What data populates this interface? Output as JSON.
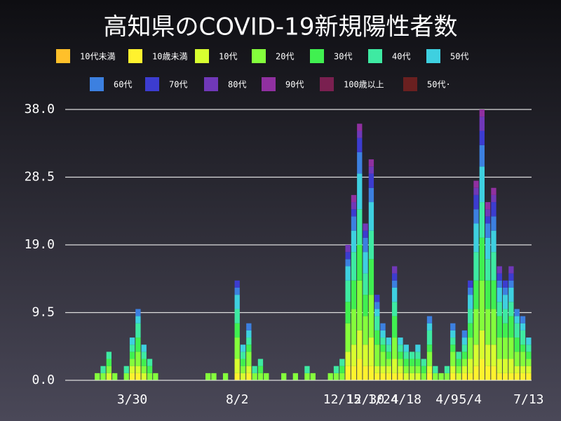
{
  "chart_data": {
    "type": "stacked_bar",
    "title": "高知県のCOVID-19新規陽性者数",
    "categories": [
      null,
      null,
      null,
      null,
      null,
      null,
      null,
      null,
      null,
      null,
      null,
      "3/30",
      null,
      null,
      null,
      null,
      null,
      null,
      null,
      null,
      null,
      null,
      null,
      null,
      null,
      null,
      null,
      null,
      null,
      "8/2",
      null,
      null,
      null,
      null,
      null,
      null,
      null,
      null,
      null,
      null,
      null,
      null,
      null,
      null,
      null,
      null,
      null,
      "12/15",
      null,
      null,
      null,
      "12/30",
      null,
      null,
      "1/24",
      null,
      null,
      null,
      "4/18",
      null,
      null,
      null,
      null,
      null,
      null,
      "4/9",
      null,
      null,
      null,
      "5/4",
      null,
      null,
      null,
      null,
      null,
      null,
      null,
      null,
      null,
      "7/13"
    ],
    "ylim": [
      0,
      38
    ],
    "yticks": [
      {
        "value": 0,
        "label": "0.0"
      },
      9.5,
      {
        "value": 19,
        "label": "19.0"
      },
      28.5,
      {
        "value": 38,
        "label": "38.0"
      }
    ],
    "grid": true,
    "series": [
      {
        "name": "10代未満",
        "color": "#ffc02a",
        "values": [
          0,
          0,
          0,
          0,
          0,
          0,
          0,
          0,
          0,
          0,
          0,
          0,
          0,
          0,
          0,
          0,
          0,
          0,
          0,
          0,
          0,
          0,
          0,
          0,
          0,
          0,
          0,
          0,
          0,
          0,
          0,
          0,
          0,
          0,
          0,
          0,
          0,
          0,
          0,
          0,
          0,
          0,
          0,
          0,
          0,
          0,
          0,
          0,
          0,
          0,
          0,
          0,
          0,
          0,
          0,
          0,
          0,
          0,
          0,
          0,
          0,
          0,
          0,
          0,
          0,
          0,
          0,
          0,
          0,
          0,
          0,
          0,
          0,
          0,
          0,
          0,
          0,
          0,
          0,
          0
        ]
      },
      {
        "name": "10歳未満",
        "color": "#fff22e",
        "values": [
          0,
          0,
          0,
          0,
          0,
          0,
          0,
          0,
          0,
          0,
          0,
          1,
          1,
          0,
          0,
          0,
          0,
          0,
          0,
          0,
          0,
          0,
          0,
          0,
          0,
          0,
          0,
          0,
          0,
          1,
          0,
          1,
          0,
          0,
          0,
          0,
          0,
          0,
          0,
          0,
          0,
          0,
          0,
          0,
          0,
          0,
          0,
          0,
          2,
          2,
          3,
          2,
          2,
          1,
          1,
          1,
          1,
          1,
          0,
          0,
          0,
          0,
          1,
          0,
          0,
          0,
          1,
          0,
          1,
          1,
          2,
          3,
          2,
          2,
          1,
          1,
          1,
          1,
          1,
          1
        ]
      },
      {
        "name": "10代",
        "color": "#d8ff30",
        "values": [
          0,
          0,
          0,
          0,
          0,
          0,
          0,
          1,
          0,
          0,
          0,
          1,
          1,
          1,
          0,
          0,
          0,
          0,
          0,
          0,
          0,
          0,
          0,
          0,
          0,
          0,
          0,
          0,
          0,
          2,
          1,
          1,
          0,
          0,
          0,
          0,
          0,
          0,
          0,
          0,
          0,
          0,
          0,
          0,
          0,
          0,
          0,
          0,
          2,
          3,
          4,
          3,
          4,
          1,
          1,
          1,
          2,
          1,
          1,
          1,
          1,
          0,
          1,
          0,
          0,
          0,
          1,
          1,
          1,
          2,
          3,
          4,
          3,
          3,
          2,
          2,
          2,
          1,
          1,
          1
        ]
      },
      {
        "name": "20代",
        "color": "#84ff3c",
        "values": [
          0,
          0,
          0,
          0,
          0,
          1,
          1,
          1,
          1,
          0,
          1,
          1,
          2,
          1,
          1,
          1,
          0,
          0,
          0,
          0,
          0,
          0,
          0,
          0,
          1,
          1,
          0,
          1,
          0,
          3,
          1,
          2,
          1,
          1,
          1,
          0,
          0,
          1,
          0,
          1,
          0,
          1,
          1,
          0,
          0,
          1,
          1,
          1,
          4,
          5,
          7,
          4,
          6,
          3,
          2,
          1,
          3,
          1,
          1,
          1,
          1,
          1,
          2,
          1,
          1,
          1,
          2,
          1,
          1,
          3,
          5,
          7,
          5,
          5,
          3,
          3,
          3,
          2,
          2,
          1
        ]
      },
      {
        "name": "30代",
        "color": "#40f050",
        "values": [
          0,
          0,
          0,
          0,
          0,
          0,
          0,
          1,
          0,
          0,
          0,
          1,
          2,
          1,
          1,
          0,
          0,
          0,
          0,
          0,
          0,
          0,
          0,
          0,
          0,
          0,
          0,
          0,
          0,
          2,
          1,
          1,
          0,
          1,
          0,
          0,
          0,
          0,
          0,
          0,
          0,
          0,
          0,
          0,
          0,
          0,
          0,
          1,
          3,
          4,
          5,
          3,
          5,
          2,
          1,
          1,
          3,
          1,
          1,
          1,
          1,
          1,
          1,
          0,
          0,
          0,
          1,
          1,
          1,
          2,
          4,
          6,
          4,
          4,
          3,
          2,
          3,
          2,
          1,
          1
        ]
      },
      {
        "name": "40代",
        "color": "#3eeaa2",
        "values": [
          0,
          0,
          0,
          0,
          0,
          0,
          1,
          1,
          0,
          0,
          1,
          1,
          2,
          1,
          1,
          0,
          0,
          0,
          0,
          0,
          0,
          0,
          0,
          0,
          0,
          0,
          0,
          0,
          0,
          2,
          1,
          1,
          1,
          1,
          0,
          0,
          0,
          0,
          0,
          0,
          0,
          1,
          0,
          0,
          0,
          0,
          1,
          1,
          3,
          4,
          5,
          3,
          4,
          2,
          1,
          1,
          2,
          1,
          1,
          1,
          1,
          1,
          2,
          1,
          0,
          1,
          1,
          1,
          1,
          2,
          4,
          5,
          3,
          4,
          2,
          2,
          2,
          2,
          2,
          1
        ]
      },
      {
        "name": "50代",
        "color": "#3ed0e0",
        "values": [
          0,
          0,
          0,
          0,
          0,
          0,
          0,
          0,
          0,
          0,
          0,
          1,
          1,
          1,
          0,
          0,
          0,
          0,
          0,
          0,
          0,
          0,
          0,
          0,
          0,
          0,
          0,
          0,
          0,
          2,
          1,
          1,
          0,
          0,
          0,
          0,
          0,
          0,
          0,
          0,
          0,
          0,
          0,
          0,
          0,
          0,
          0,
          0,
          2,
          3,
          5,
          3,
          4,
          1,
          1,
          1,
          2,
          1,
          1,
          0,
          1,
          0,
          1,
          0,
          0,
          0,
          1,
          0,
          1,
          2,
          4,
          5,
          3,
          3,
          2,
          2,
          2,
          1,
          1,
          1
        ]
      },
      {
        "name": "60代",
        "color": "#3c80e0",
        "values": [
          0,
          0,
          0,
          0,
          0,
          0,
          0,
          0,
          0,
          0,
          0,
          0,
          1,
          0,
          0,
          0,
          0,
          0,
          0,
          0,
          0,
          0,
          0,
          0,
          0,
          0,
          0,
          0,
          0,
          1,
          0,
          1,
          0,
          0,
          0,
          0,
          0,
          0,
          0,
          0,
          0,
          0,
          0,
          0,
          0,
          0,
          0,
          0,
          1,
          2,
          3,
          2,
          2,
          1,
          1,
          0,
          1,
          0,
          0,
          0,
          0,
          0,
          1,
          0,
          0,
          0,
          1,
          0,
          1,
          1,
          2,
          3,
          2,
          2,
          1,
          1,
          1,
          1,
          1,
          0
        ]
      },
      {
        "name": "70代",
        "color": "#3c3cd0",
        "values": [
          0,
          0,
          0,
          0,
          0,
          0,
          0,
          0,
          0,
          0,
          0,
          0,
          0,
          0,
          0,
          0,
          0,
          0,
          0,
          0,
          0,
          0,
          0,
          0,
          0,
          0,
          0,
          0,
          0,
          1,
          0,
          0,
          0,
          0,
          0,
          0,
          0,
          0,
          0,
          0,
          0,
          0,
          0,
          0,
          0,
          0,
          0,
          0,
          1,
          1,
          2,
          1,
          2,
          1,
          0,
          0,
          1,
          0,
          0,
          0,
          0,
          0,
          0,
          0,
          0,
          0,
          0,
          0,
          0,
          1,
          2,
          2,
          1,
          2,
          1,
          1,
          1,
          0,
          0,
          0
        ]
      },
      {
        "name": "80代",
        "color": "#7038b8",
        "values": [
          0,
          0,
          0,
          0,
          0,
          0,
          0,
          0,
          0,
          0,
          0,
          0,
          0,
          0,
          0,
          0,
          0,
          0,
          0,
          0,
          0,
          0,
          0,
          0,
          0,
          0,
          0,
          0,
          0,
          0,
          0,
          0,
          0,
          0,
          0,
          0,
          0,
          0,
          0,
          0,
          0,
          0,
          0,
          0,
          0,
          0,
          0,
          0,
          1,
          1,
          1,
          1,
          1,
          0,
          0,
          0,
          1,
          0,
          0,
          0,
          0,
          0,
          0,
          0,
          0,
          0,
          0,
          0,
          0,
          0,
          1,
          2,
          1,
          1,
          1,
          0,
          1,
          0,
          0,
          0
        ]
      },
      {
        "name": "90代",
        "color": "#9030a0",
        "values": [
          0,
          0,
          0,
          0,
          0,
          0,
          0,
          0,
          0,
          0,
          0,
          0,
          0,
          0,
          0,
          0,
          0,
          0,
          0,
          0,
          0,
          0,
          0,
          0,
          0,
          0,
          0,
          0,
          0,
          0,
          0,
          0,
          0,
          0,
          0,
          0,
          0,
          0,
          0,
          0,
          0,
          0,
          0,
          0,
          0,
          0,
          0,
          0,
          0,
          1,
          1,
          0,
          1,
          0,
          0,
          0,
          0,
          0,
          0,
          0,
          0,
          0,
          0,
          0,
          0,
          0,
          0,
          0,
          0,
          0,
          1,
          1,
          1,
          1,
          0,
          0,
          0,
          0,
          0,
          0
        ]
      },
      {
        "name": "100歳以上",
        "color": "#7a2050",
        "values": [
          0,
          0,
          0,
          0,
          0,
          0,
          0,
          0,
          0,
          0,
          0,
          0,
          0,
          0,
          0,
          0,
          0,
          0,
          0,
          0,
          0,
          0,
          0,
          0,
          0,
          0,
          0,
          0,
          0,
          0,
          0,
          0,
          0,
          0,
          0,
          0,
          0,
          0,
          0,
          0,
          0,
          0,
          0,
          0,
          0,
          0,
          0,
          0,
          0,
          0,
          0,
          0,
          0,
          0,
          0,
          0,
          0,
          0,
          0,
          0,
          0,
          0,
          0,
          0,
          0,
          0,
          0,
          0,
          0,
          0,
          0,
          0,
          0,
          0,
          0,
          0,
          0,
          0,
          0,
          0
        ]
      },
      {
        "name": "50代·",
        "color": "#6a2020",
        "values": [
          0,
          0,
          0,
          0,
          0,
          0,
          0,
          0,
          0,
          0,
          0,
          0,
          0,
          0,
          0,
          0,
          0,
          0,
          0,
          0,
          0,
          0,
          0,
          0,
          0,
          0,
          0,
          0,
          0,
          0,
          0,
          0,
          0,
          0,
          0,
          0,
          0,
          0,
          0,
          0,
          0,
          0,
          0,
          0,
          0,
          0,
          0,
          0,
          0,
          0,
          0,
          0,
          0,
          0,
          0,
          0,
          0,
          0,
          0,
          0,
          0,
          0,
          0,
          0,
          0,
          0,
          0,
          0,
          0,
          0,
          0,
          0,
          0,
          0,
          0,
          0,
          0,
          0,
          0,
          0
        ]
      }
    ]
  }
}
